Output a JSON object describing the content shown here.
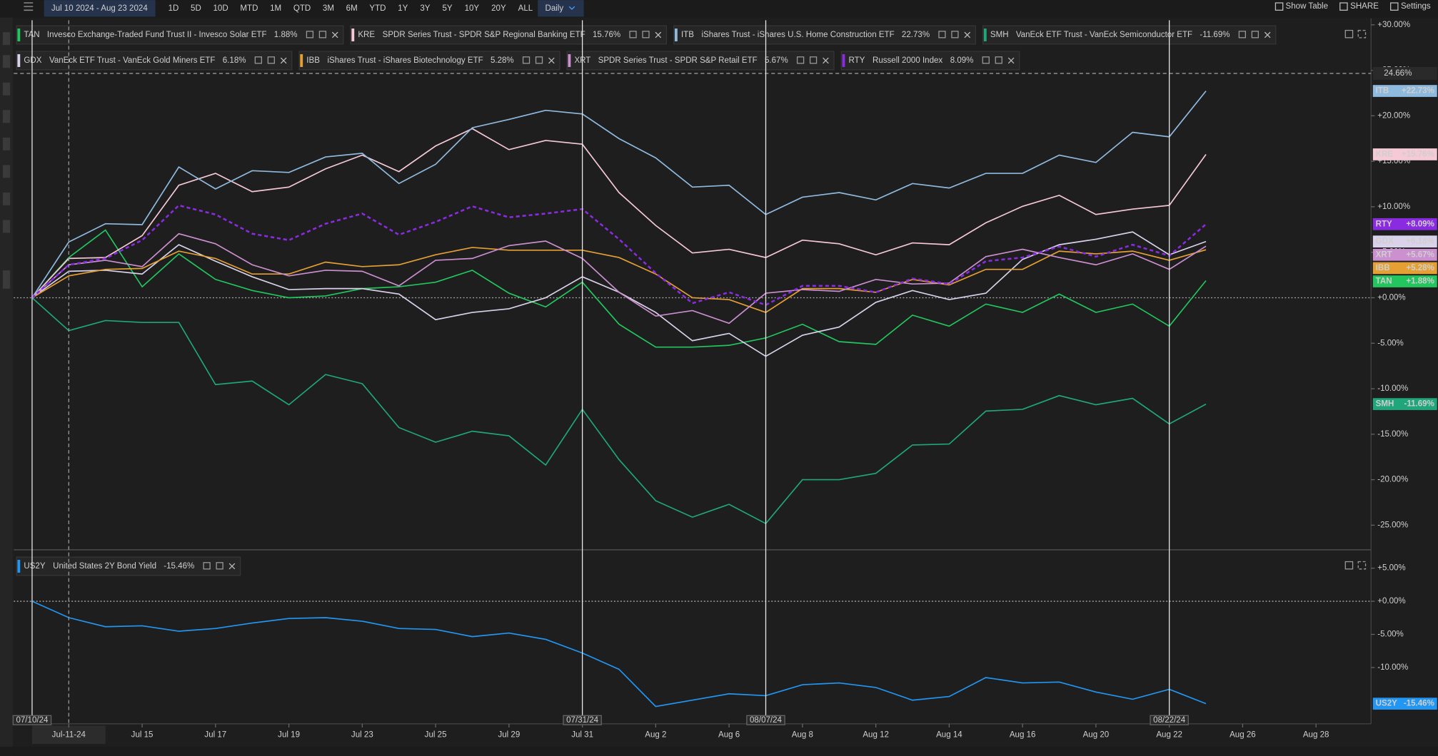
{
  "toolbar": {
    "range": "Jul 10 2024 - Aug 23 2024",
    "periods": [
      "1D",
      "5D",
      "10D",
      "MTD",
      "1M",
      "QTD",
      "3M",
      "6M",
      "YTD",
      "1Y",
      "3Y",
      "5Y",
      "10Y",
      "20Y",
      "ALL"
    ],
    "interval": "Daily",
    "actions": [
      "Show Table",
      "SHARE",
      "Settings"
    ]
  },
  "chart_data": [
    {
      "type": "line",
      "xlim": [
        -0.5,
        36.5
      ],
      "ylim": [
        -27.5,
        30.5
      ],
      "yticks": [
        {
          "value": 30,
          "label": "+30.00%"
        },
        {
          "value": 25,
          "label": "+25.00%"
        },
        {
          "value": 20,
          "label": "+20.00%"
        },
        {
          "value": 15,
          "label": "+15.00%"
        },
        {
          "value": 10,
          "label": "+10.00%"
        },
        {
          "value": 5,
          "label": "+5.00%"
        },
        {
          "value": 0,
          "label": "+0.00%"
        },
        {
          "value": -5,
          "label": "-5.00%"
        },
        {
          "value": -10,
          "label": "-10.00%"
        },
        {
          "value": -15,
          "label": "-15.00%"
        },
        {
          "value": -20,
          "label": "-20.00%"
        },
        {
          "value": -25,
          "label": "-25.00%"
        }
      ],
      "crosshair": {
        "value": 24.66,
        "label": "24.66%"
      },
      "series": [
        {
          "code": "TAN",
          "name": "Invesco Exchange-Traded Fund Trust II - Invesco Solar ETF",
          "legend_value": "1.88%",
          "end_label": "+1.88%",
          "color": "#22c55e",
          "dashed": false,
          "values": [
            0,
            4.42,
            7.44,
            1.21,
            4.82,
            2.01,
            0.8,
            0,
            0.2,
            1.01,
            1.21,
            1.71,
            3.02,
            0.5,
            -1.01,
            1.71,
            -2.91,
            -5.43,
            -5.43,
            -5.23,
            -4.42,
            -2.91,
            -4.82,
            -5.13,
            -1.91,
            -3.12,
            -0.7,
            -1.61,
            0.4,
            -1.61,
            -0.7,
            -3.12,
            1.88
          ]
        },
        {
          "code": "KRE",
          "name": "SPDR Series Trust - SPDR S&P Regional Banking ETF",
          "legend_value": "15.76%",
          "end_label": "+15.76%",
          "color": "#f6c9d6",
          "dashed": false,
          "values": [
            0,
            4.32,
            4.42,
            6.83,
            12.36,
            13.67,
            11.66,
            12.16,
            14.17,
            15.68,
            13.87,
            16.68,
            18.59,
            16.28,
            17.29,
            16.88,
            11.56,
            7.94,
            4.92,
            5.33,
            4.42,
            6.33,
            5.93,
            4.72,
            6.03,
            5.83,
            8.24,
            10.05,
            11.26,
            9.15,
            9.75,
            10.15,
            15.76
          ]
        },
        {
          "code": "ITB",
          "name": "iShares Trust - iShares U.S. Home Construction ETF",
          "legend_value": "22.73%",
          "end_label": "+22.73%",
          "color": "#8fbadf",
          "dashed": false,
          "values": [
            0,
            6.13,
            8.14,
            8.04,
            14.37,
            11.96,
            13.97,
            13.77,
            15.48,
            15.88,
            12.56,
            14.67,
            18.69,
            19.6,
            20.6,
            20.2,
            17.49,
            15.38,
            12.16,
            12.36,
            9.15,
            11.06,
            11.56,
            10.75,
            12.56,
            12.06,
            13.67,
            13.67,
            15.68,
            14.87,
            18.19,
            17.69,
            22.73
          ]
        },
        {
          "code": "SMH",
          "name": "VanEck ETF Trust - VanEck Semiconductor ETF",
          "legend_value": "-11.69%",
          "end_label": "-11.69%",
          "color": "#1fa67a",
          "dashed": false,
          "values": [
            0,
            -3.62,
            -2.51,
            -2.71,
            -2.71,
            -9.55,
            -9.15,
            -11.76,
            -8.44,
            -9.45,
            -14.27,
            -15.88,
            -14.67,
            -15.18,
            -18.39,
            -12.26,
            -17.79,
            -22.31,
            -24.12,
            -22.71,
            -24.82,
            -20.0,
            -20.0,
            -19.3,
            -16.18,
            -16.08,
            -12.46,
            -12.26,
            -10.75,
            -11.76,
            -11.06,
            -13.87,
            -11.69
          ]
        },
        {
          "code": "GDX",
          "name": "VanEck ETF Trust - VanEck Gold Miners ETF",
          "legend_value": "6.18%",
          "end_label": "+6.18%",
          "color": "#d9d2ea",
          "dashed": false,
          "values": [
            0,
            2.91,
            3.02,
            2.61,
            5.83,
            4.02,
            2.31,
            0.9,
            1.01,
            1.01,
            0.4,
            -2.41,
            -1.61,
            -1.21,
            0,
            2.31,
            0.6,
            -1.61,
            -4.72,
            -3.92,
            -6.43,
            -4.12,
            -3.22,
            -0.5,
            0.8,
            -0.2,
            0.5,
            4.22,
            5.83,
            6.43,
            7.24,
            4.72,
            6.18
          ]
        },
        {
          "code": "IBB",
          "name": "iShares Trust - iShares Biotechnology ETF",
          "legend_value": "5.28%",
          "end_label": "+5.28%",
          "color": "#e5a033",
          "dashed": false,
          "values": [
            0,
            2.41,
            3.12,
            3.22,
            5.13,
            4.32,
            2.61,
            2.61,
            3.92,
            3.42,
            3.62,
            4.72,
            5.53,
            5.23,
            5.23,
            5.23,
            4.42,
            2.61,
            0,
            -0.2,
            -1.61,
            1.01,
            1.01,
            0.6,
            2.01,
            1.41,
            3.12,
            3.12,
            5.13,
            4.82,
            5.13,
            4.12,
            5.28
          ]
        },
        {
          "code": "XRT",
          "name": "SPDR Series Trust - SPDR S&P Retail ETF",
          "legend_value": "5.67%",
          "end_label": "+5.67%",
          "color": "#cc8fd0",
          "dashed": false,
          "values": [
            0,
            3.62,
            4.12,
            3.42,
            7.04,
            5.93,
            3.62,
            2.41,
            3.02,
            2.91,
            1.31,
            4.12,
            4.32,
            5.73,
            6.23,
            4.32,
            0.6,
            -2.01,
            -1.41,
            -2.81,
            0.5,
            0.9,
            0.7,
            2.01,
            1.51,
            1.61,
            4.52,
            5.33,
            4.42,
            3.62,
            4.82,
            3.12,
            5.67
          ]
        },
        {
          "code": "RTY",
          "name": "Russell 2000 Index",
          "legend_value": "8.09%",
          "end_label": "+8.09%",
          "color": "#8a2be2",
          "dashed": true,
          "values": [
            0,
            3.62,
            4.32,
            6.33,
            10.15,
            9.15,
            7.04,
            6.33,
            8.14,
            9.25,
            6.93,
            8.34,
            10.05,
            8.84,
            9.25,
            9.75,
            6.43,
            2.71,
            -0.6,
            0.6,
            -0.8,
            1.31,
            1.31,
            0.6,
            2.11,
            1.51,
            4.02,
            4.42,
            5.63,
            4.52,
            5.83,
            4.62,
            8.09
          ]
        }
      ]
    },
    {
      "type": "line",
      "xlim": [
        -0.5,
        36.5
      ],
      "ylim": [
        -18.5,
        7.5
      ],
      "yticks": [
        {
          "value": 5,
          "label": "+5.00%"
        },
        {
          "value": 0,
          "label": "+0.00%"
        },
        {
          "value": -5,
          "label": "-5.00%"
        },
        {
          "value": -10,
          "label": "-10.00%"
        }
      ],
      "xticks": [
        {
          "value": 1,
          "label": "Jul-11-24"
        },
        {
          "value": 3,
          "label": "Jul 15"
        },
        {
          "value": 5,
          "label": "Jul 17"
        },
        {
          "value": 7,
          "label": "Jul 19"
        },
        {
          "value": 9,
          "label": "Jul 23"
        },
        {
          "value": 11,
          "label": "Jul 25"
        },
        {
          "value": 13,
          "label": "Jul 29"
        },
        {
          "value": 15,
          "label": "Jul 31"
        },
        {
          "value": 17,
          "label": "Aug 2"
        },
        {
          "value": 19,
          "label": "Aug 6"
        },
        {
          "value": 21,
          "label": "Aug 8"
        },
        {
          "value": 23,
          "label": "Aug 12"
        },
        {
          "value": 25,
          "label": "Aug 14"
        },
        {
          "value": 27,
          "label": "Aug 16"
        },
        {
          "value": 29,
          "label": "Aug 20"
        },
        {
          "value": 31,
          "label": "Aug 22"
        },
        {
          "value": 33,
          "label": "Aug 26"
        },
        {
          "value": 35,
          "label": "Aug 28"
        }
      ],
      "date_markers": [
        {
          "value": 0,
          "label": "07/10/24"
        },
        {
          "value": 15,
          "label": "07/31/24"
        },
        {
          "value": 20,
          "label": "08/07/24"
        },
        {
          "value": 31,
          "label": "08/22/24"
        }
      ],
      "series": [
        {
          "code": "US2Y",
          "name": "United States 2Y Bond Yield",
          "legend_value": "-15.46%",
          "end_label": "-15.46%",
          "color": "#2196f3",
          "dashed": false,
          "values": [
            0,
            -2.47,
            -3.84,
            -3.7,
            -4.52,
            -4.11,
            -3.29,
            -2.6,
            -2.47,
            -3.01,
            -4.11,
            -4.25,
            -5.34,
            -4.79,
            -5.75,
            -7.81,
            -10.27,
            -15.89,
            -14.93,
            -13.97,
            -14.25,
            -12.6,
            -12.33,
            -13.01,
            -14.93,
            -14.38,
            -11.51,
            -12.33,
            -12.19,
            -13.7,
            -14.79,
            -13.29,
            -15.46
          ]
        }
      ]
    }
  ]
}
